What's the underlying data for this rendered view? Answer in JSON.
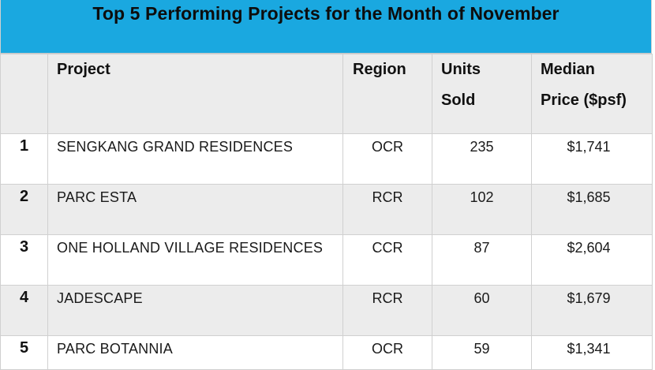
{
  "title": "Top 5 Performing Projects for the Month of November",
  "headers": {
    "project": "Project",
    "region": "Region",
    "units_line1": "Units",
    "units_line2": "Sold",
    "price_line1": "Median",
    "price_line2": "Price ($psf)"
  },
  "rows": [
    {
      "rank": "1",
      "project": "SENGKANG GRAND RESIDENCES",
      "region": "OCR",
      "units": "235",
      "price": "$1,741"
    },
    {
      "rank": "2",
      "project": "PARC ESTA",
      "region": "RCR",
      "units": "102",
      "price": "$1,685"
    },
    {
      "rank": "3",
      "project": "ONE HOLLAND VILLAGE RESIDENCES",
      "region": "CCR",
      "units": "87",
      "price": "$2,604"
    },
    {
      "rank": "4",
      "project": "JADESCAPE",
      "region": "RCR",
      "units": "60",
      "price": "$1,679"
    },
    {
      "rank": "5",
      "project": "PARC BOTANNIA",
      "region": "OCR",
      "units": "59",
      "price": "$1,341"
    }
  ],
  "colors": {
    "title_bg": "#1aa8e0",
    "row_shade": "#ececec",
    "grid_line": "#d0d0d0"
  }
}
